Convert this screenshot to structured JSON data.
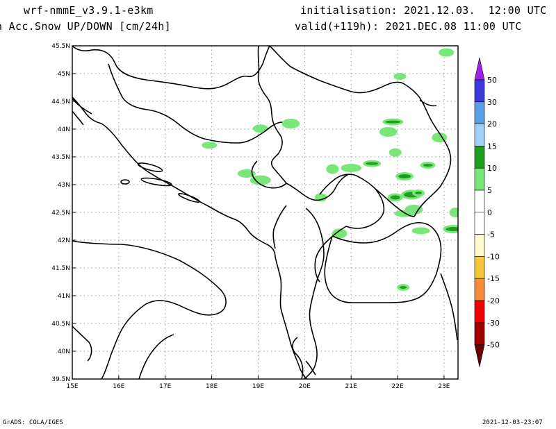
{
  "header": {
    "model": "wrf-nmmE_v3.9.1-e3km",
    "field": "n Acc.Snow UP/DOWN [cm/24h]",
    "init": "initialisation: 2021.12.03.  12:00 UTC",
    "valid": "valid(+119h): 2021.DEC.08 11:00 UTC"
  },
  "footer": {
    "left": "GrADS: COLA/IGES",
    "right": "2021-12-03-23:07"
  },
  "map": {
    "lon_range": [
      15,
      23.3
    ],
    "lat_range": [
      39.5,
      45.5
    ],
    "lon_ticks": [
      "15E",
      "16E",
      "17E",
      "18E",
      "19E",
      "20E",
      "21E",
      "22E",
      "23E"
    ],
    "lat_ticks": [
      "39.5N",
      "40N",
      "40.5N",
      "41N",
      "41.5N",
      "42N",
      "42.5N",
      "43N",
      "43.5N",
      "44N",
      "44.5N",
      "45N",
      "45.5N"
    ],
    "grid": true
  },
  "colorbar": {
    "labels": [
      "50",
      "30",
      "20",
      "15",
      "10",
      "5",
      "0",
      "-5",
      "-10",
      "-15",
      "-20",
      "-30",
      "-50"
    ],
    "colors": [
      "#a020f0",
      "#3c3cdc",
      "#5aa0e6",
      "#a0d2fa",
      "#1e9e1e",
      "#78e678",
      "#ffffff",
      "#ffffff",
      "#fffacd",
      "#f5c83c",
      "#f58c3c",
      "#f00000",
      "#a00000",
      "#6e0000"
    ]
  },
  "snow_patches": [
    {
      "lon": 22.05,
      "lat": 44.95,
      "level": "5"
    },
    {
      "lon": 23.05,
      "lat": 45.38,
      "level": "5"
    },
    {
      "lon": 21.8,
      "lat": 43.95,
      "level": "5"
    },
    {
      "lon": 21.9,
      "lat": 44.13,
      "level": "10"
    },
    {
      "lon": 21.95,
      "lat": 43.58,
      "level": "5"
    },
    {
      "lon": 22.9,
      "lat": 43.85,
      "level": "5"
    },
    {
      "lon": 21.45,
      "lat": 43.38,
      "level": "10"
    },
    {
      "lon": 21.0,
      "lat": 43.3,
      "level": "5"
    },
    {
      "lon": 20.6,
      "lat": 43.28,
      "level": "5"
    },
    {
      "lon": 22.65,
      "lat": 43.35,
      "level": "10"
    },
    {
      "lon": 22.15,
      "lat": 43.15,
      "level": "10"
    },
    {
      "lon": 22.3,
      "lat": 42.82,
      "level": "10"
    },
    {
      "lon": 22.45,
      "lat": 42.85,
      "level": "10"
    },
    {
      "lon": 21.95,
      "lat": 42.77,
      "level": "10"
    },
    {
      "lon": 22.35,
      "lat": 42.55,
      "level": "5"
    },
    {
      "lon": 22.15,
      "lat": 42.48,
      "level": "5"
    },
    {
      "lon": 20.35,
      "lat": 42.77,
      "level": "5"
    },
    {
      "lon": 20.75,
      "lat": 42.12,
      "level": "5"
    },
    {
      "lon": 22.5,
      "lat": 42.17,
      "level": "5"
    },
    {
      "lon": 23.2,
      "lat": 42.2,
      "level": "10"
    },
    {
      "lon": 23.25,
      "lat": 42.5,
      "level": "5"
    },
    {
      "lon": 17.95,
      "lat": 43.71,
      "level": "5"
    },
    {
      "lon": 18.75,
      "lat": 43.2,
      "level": "5"
    },
    {
      "lon": 19.05,
      "lat": 43.08,
      "level": "5"
    },
    {
      "lon": 22.12,
      "lat": 41.15,
      "level": "10"
    },
    {
      "lon": 19.05,
      "lat": 44.01,
      "level": "5"
    },
    {
      "lon": 19.7,
      "lat": 44.1,
      "level": "5"
    }
  ]
}
